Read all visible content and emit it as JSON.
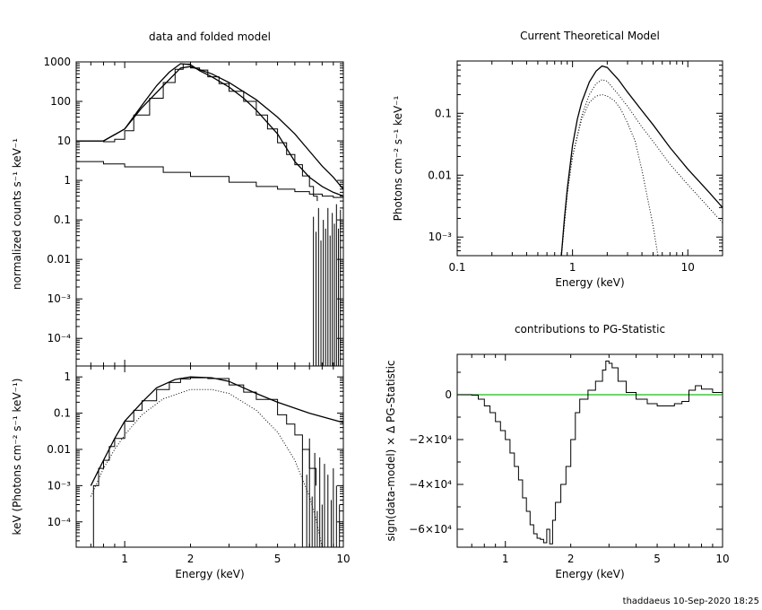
{
  "footer": "thaddaeus 10-Sep-2020 18:25",
  "chart_data": [
    {
      "type": "line",
      "title": "data and folded model",
      "xscale": "log",
      "yscale": "log",
      "xlim": [
        0.6,
        10
      ],
      "ylim": [
        2e-05,
        1000
      ],
      "ylabel": "normalized counts s⁻¹ keV⁻¹",
      "xticklabels": [],
      "yticklabels": [
        "1000",
        "100",
        "10",
        "1",
        "0.1",
        "0.01",
        "10⁻³",
        "10⁻⁴"
      ],
      "series": [
        {
          "style": "histogram",
          "x": [
            0.6,
            0.7,
            0.8,
            0.9,
            1.0,
            1.1,
            1.3,
            1.5,
            1.7,
            1.85,
            2.0,
            2.2,
            2.4,
            2.7,
            3.0,
            3.5,
            4.0,
            4.5,
            5.0,
            5.5,
            6.0,
            6.5,
            7.0,
            7.3,
            7.6
          ],
          "y": [
            10,
            10,
            9.5,
            11,
            18,
            45,
            120,
            300,
            650,
            880,
            700,
            620,
            420,
            280,
            180,
            100,
            45,
            20,
            9,
            4.5,
            2.5,
            1.3,
            0.7,
            0.4,
            0.3
          ]
        },
        {
          "style": "line",
          "x": [
            0.6,
            0.8,
            1.0,
            1.2,
            1.4,
            1.6,
            1.8,
            2.0,
            2.2,
            2.5,
            3.0,
            3.5,
            4.0,
            5.0,
            6.0,
            7.0,
            8.0,
            9.0,
            10.0
          ],
          "y": [
            10,
            10,
            20,
            80,
            250,
            550,
            900,
            850,
            600,
            420,
            230,
            120,
            60,
            15,
            3,
            1.2,
            0.7,
            0.5,
            0.4
          ]
        },
        {
          "style": "line",
          "x": [
            0.6,
            0.8,
            1.0,
            1.2,
            1.5,
            1.8,
            2.0,
            2.5,
            3.0,
            4.0,
            5.0,
            6.0,
            7.0,
            8.0,
            9.0,
            10.0
          ],
          "y": [
            10,
            10,
            20,
            70,
            250,
            700,
            760,
            500,
            300,
            110,
            40,
            15,
            5.5,
            2.3,
            1.2,
            0.6
          ]
        },
        {
          "style": "histogram",
          "x": [
            0.6,
            0.8,
            1.0,
            1.5,
            2.0,
            3.0,
            4.0,
            5.0,
            6.0,
            7.0,
            8.0,
            9.0,
            10.0
          ],
          "y": [
            3,
            2.6,
            2.2,
            1.6,
            1.25,
            0.9,
            0.7,
            0.6,
            0.52,
            0.45,
            0.4,
            0.37,
            0.35
          ]
        },
        {
          "style": "noise",
          "x": [
            7.3,
            7.5,
            7.7,
            7.9,
            8.1,
            8.3,
            8.5,
            8.7,
            8.9,
            9.1,
            9.3,
            9.5,
            9.7
          ],
          "y": [
            0.12,
            0.05,
            0.2,
            0.03,
            0.1,
            0.06,
            0.2,
            0.04,
            0.15,
            0.08,
            0.25,
            0.06,
            0.18
          ]
        }
      ]
    },
    {
      "type": "line",
      "xscale": "log",
      "yscale": "log",
      "xlim": [
        0.6,
        10
      ],
      "ylim": [
        2e-05,
        2
      ],
      "xlabel": "Energy (keV)",
      "ylabel": "keV (Photons cm⁻² s⁻¹ keV⁻¹)",
      "xticklabels": [
        "1",
        "2",
        "5",
        "10"
      ],
      "yticklabels": [
        "1",
        "0.1",
        "0.01",
        "10⁻³",
        "10⁻⁴"
      ],
      "series": [
        {
          "style": "histogram",
          "x": [
            0.6,
            0.68,
            0.72,
            0.76,
            0.8,
            0.85,
            0.9,
            1.0,
            1.1,
            1.2,
            1.4,
            1.6,
            1.8,
            2.0,
            2.4,
            3.0,
            3.5,
            4.0,
            5.0,
            5.5,
            6.0,
            6.5,
            7.0,
            7.5
          ],
          "y": [
            2e-05,
            2e-05,
            0.001,
            0.003,
            0.005,
            0.012,
            0.02,
            0.06,
            0.12,
            0.22,
            0.45,
            0.7,
            0.88,
            0.95,
            0.9,
            0.6,
            0.38,
            0.24,
            0.09,
            0.05,
            0.025,
            0.01,
            0.003,
            0.001
          ]
        },
        {
          "style": "line",
          "x": [
            0.7,
            0.8,
            0.9,
            1.0,
            1.2,
            1.4,
            1.7,
            2.0,
            2.5,
            3.0,
            4.0,
            5.0,
            7.0,
            10.0
          ],
          "y": [
            0.001,
            0.005,
            0.02,
            0.06,
            0.2,
            0.5,
            0.85,
            1.0,
            0.95,
            0.75,
            0.35,
            0.2,
            0.1,
            0.055
          ]
        },
        {
          "style": "dotted",
          "x": [
            0.7,
            0.8,
            0.9,
            1.0,
            1.2,
            1.5,
            2.0,
            2.5,
            3.0,
            4.0,
            5.0,
            6.0,
            7.0,
            7.5,
            8.0
          ],
          "y": [
            0.0005,
            0.003,
            0.01,
            0.025,
            0.09,
            0.25,
            0.45,
            0.45,
            0.35,
            0.12,
            0.03,
            0.005,
            0.0005,
            0.00012,
            2e-05
          ]
        },
        {
          "style": "noise",
          "x": [
            6.5,
            6.8,
            7.0,
            7.2,
            7.4,
            7.6,
            7.8,
            8.0,
            8.2,
            8.5,
            8.8,
            9.0,
            9.3,
            9.6
          ],
          "y": [
            0.01,
            0.002,
            0.02,
            0.0005,
            0.008,
            0.0002,
            0.006,
            0.0003,
            0.004,
            0.002,
            0.0004,
            0.003,
            0.001,
            0.0003
          ]
        }
      ]
    },
    {
      "type": "line",
      "title": "Current Theoretical Model",
      "xscale": "log",
      "yscale": "log",
      "xlim": [
        0.1,
        20
      ],
      "ylim": [
        0.0005,
        0.7
      ],
      "xlabel": "Energy (keV)",
      "ylabel": "Photons cm⁻² s⁻¹ keV⁻¹",
      "xticklabels": [
        "0.1",
        "1",
        "10"
      ],
      "yticklabels": [
        "0.1",
        "0.01",
        "10⁻³"
      ],
      "series": [
        {
          "style": "line",
          "x": [
            0.8,
            0.85,
            0.9,
            1.0,
            1.1,
            1.2,
            1.4,
            1.6,
            1.8,
            2.0,
            2.5,
            3.0,
            4.0,
            5.0,
            7.0,
            10.0,
            15.0,
            20.0
          ],
          "y": [
            0.0005,
            0.002,
            0.006,
            0.03,
            0.08,
            0.15,
            0.32,
            0.48,
            0.58,
            0.55,
            0.35,
            0.22,
            0.11,
            0.065,
            0.028,
            0.0125,
            0.0055,
            0.003
          ]
        },
        {
          "style": "dotted",
          "x": [
            0.8,
            0.9,
            1.0,
            1.2,
            1.4,
            1.6,
            1.8,
            2.0,
            2.3,
            2.6,
            3.0,
            3.5,
            4.0,
            4.5,
            5.0,
            5.5
          ],
          "y": [
            0.0005,
            0.005,
            0.02,
            0.08,
            0.15,
            0.19,
            0.2,
            0.19,
            0.16,
            0.12,
            0.07,
            0.035,
            0.012,
            0.004,
            0.0015,
            0.0005
          ]
        },
        {
          "style": "dotted",
          "x": [
            0.8,
            0.9,
            1.0,
            1.2,
            1.4,
            1.6,
            1.8,
            2.0,
            2.5,
            3.0,
            4.0,
            5.0,
            7.0,
            10.0,
            20.0
          ],
          "y": [
            0.0005,
            0.005,
            0.02,
            0.09,
            0.2,
            0.3,
            0.35,
            0.33,
            0.2,
            0.13,
            0.06,
            0.035,
            0.015,
            0.007,
            0.0017
          ]
        }
      ]
    },
    {
      "type": "line",
      "title": "contributions to PG-Statistic",
      "xscale": "log",
      "yscale": "linear",
      "xlim": [
        0.6,
        10
      ],
      "ylim": [
        -68000,
        18000
      ],
      "xlabel": "Energy (keV)",
      "ylabel": "sign(data-model) × Δ PG-Statistic",
      "xticklabels": [
        "1",
        "2",
        "5",
        "10"
      ],
      "yticklabels": [
        "0",
        "−2×10⁴",
        "−4×10⁴",
        "−6×10⁴"
      ],
      "zero_line_color": "#00cc00",
      "series": [
        {
          "style": "histogram",
          "x": [
            0.6,
            0.7,
            0.75,
            0.8,
            0.85,
            0.9,
            0.95,
            1.0,
            1.05,
            1.1,
            1.15,
            1.2,
            1.25,
            1.3,
            1.35,
            1.4,
            1.45,
            1.5,
            1.55,
            1.6,
            1.65,
            1.7,
            1.8,
            1.9,
            2.0,
            2.1,
            2.2,
            2.4,
            2.6,
            2.8,
            2.9,
            3.0,
            3.1,
            3.3,
            3.6,
            4.0,
            4.5,
            5.0,
            5.5,
            6.0,
            6.5,
            7.0,
            7.5,
            8.0,
            9.0,
            10.0
          ],
          "y": [
            0,
            -200,
            -2000,
            -5000,
            -8000,
            -12000,
            -16000,
            -20000,
            -26000,
            -32000,
            -38000,
            -46000,
            -52000,
            -58000,
            -62000,
            -64000,
            -64500,
            -66000,
            -60000,
            -66500,
            -56000,
            -48000,
            -40000,
            -32000,
            -20000,
            -8000,
            -2000,
            2000,
            6000,
            11000,
            15000,
            14000,
            12000,
            6000,
            1000,
            -2000,
            -4000,
            -5000,
            -5000,
            -4000,
            -3000,
            2000,
            4000,
            2500,
            1000,
            0
          ]
        }
      ]
    }
  ]
}
